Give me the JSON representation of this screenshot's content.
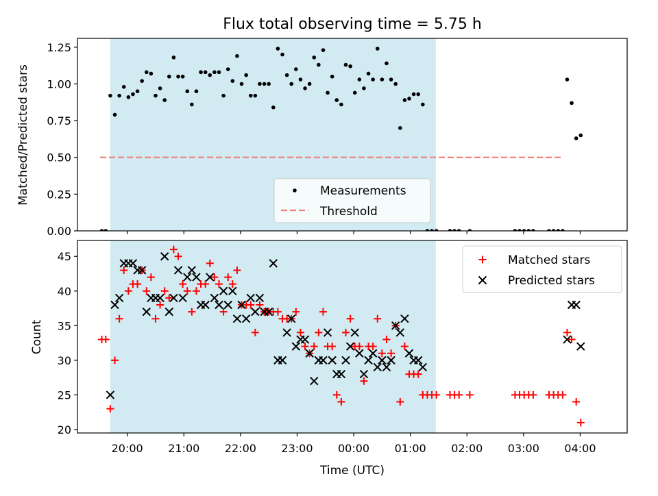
{
  "chart_data": [
    {
      "type": "scatter",
      "title": "Flux total observing time = 5.75 h",
      "ylabel": "Matched/Predicted stars",
      "xlabel": "",
      "ylim": [
        0,
        1.31
      ],
      "xlim": [
        -0.88,
        8.83
      ],
      "y_ticks": [
        0,
        0.25,
        0.5,
        0.75,
        1.0,
        1.25
      ],
      "y_tick_labels": [
        "0.00",
        "0.25",
        "0.50",
        "0.75",
        "1.00",
        "1.25"
      ],
      "shaded_region": {
        "x": [
          -0.3,
          5.45
        ],
        "color": "#add8e6"
      },
      "legend": {
        "position": "lower-center",
        "entries": [
          "Measurements",
          "Threshold"
        ]
      },
      "threshold": {
        "name": "Threshold",
        "y": 0.5,
        "x": [
          -0.48,
          7.68
        ],
        "color": "#f08080"
      },
      "series": [
        {
          "name": "Measurements",
          "color": "#000000",
          "points": [
            [
              -0.45,
              0.0
            ],
            [
              -0.38,
              0.0
            ],
            [
              -0.3,
              0.92
            ],
            [
              -0.22,
              0.79
            ],
            [
              -0.14,
              0.92
            ],
            [
              -0.06,
              0.98
            ],
            [
              0.02,
              0.91
            ],
            [
              0.1,
              0.93
            ],
            [
              0.18,
              0.95
            ],
            [
              0.26,
              1.02
            ],
            [
              0.34,
              1.08
            ],
            [
              0.42,
              1.07
            ],
            [
              0.5,
              0.92
            ],
            [
              0.58,
              0.97
            ],
            [
              0.66,
              0.89
            ],
            [
              0.74,
              1.05
            ],
            [
              0.82,
              1.18
            ],
            [
              0.9,
              1.05
            ],
            [
              0.98,
              1.05
            ],
            [
              1.06,
              0.95
            ],
            [
              1.14,
              0.86
            ],
            [
              1.22,
              0.95
            ],
            [
              1.3,
              1.08
            ],
            [
              1.38,
              1.08
            ],
            [
              1.46,
              1.06
            ],
            [
              1.54,
              1.08
            ],
            [
              1.62,
              1.08
            ],
            [
              1.7,
              0.92
            ],
            [
              1.78,
              1.1
            ],
            [
              1.86,
              1.02
            ],
            [
              1.94,
              1.19
            ],
            [
              2.02,
              1.0
            ],
            [
              2.1,
              1.06
            ],
            [
              2.18,
              0.92
            ],
            [
              2.26,
              0.92
            ],
            [
              2.34,
              1.0
            ],
            [
              2.42,
              1.0
            ],
            [
              2.5,
              1.0
            ],
            [
              2.58,
              0.84
            ],
            [
              2.66,
              1.24
            ],
            [
              2.74,
              1.2
            ],
            [
              2.82,
              1.06
            ],
            [
              2.9,
              1.0
            ],
            [
              2.98,
              1.1
            ],
            [
              3.06,
              1.03
            ],
            [
              3.14,
              0.97
            ],
            [
              3.22,
              1.0
            ],
            [
              3.3,
              1.18
            ],
            [
              3.38,
              1.13
            ],
            [
              3.46,
              1.23
            ],
            [
              3.54,
              0.94
            ],
            [
              3.62,
              1.05
            ],
            [
              3.7,
              0.89
            ],
            [
              3.78,
              0.86
            ],
            [
              3.86,
              1.13
            ],
            [
              3.94,
              1.12
            ],
            [
              4.02,
              0.94
            ],
            [
              4.1,
              1.03
            ],
            [
              4.18,
              0.97
            ],
            [
              4.26,
              1.07
            ],
            [
              4.34,
              1.03
            ],
            [
              4.42,
              1.24
            ],
            [
              4.5,
              1.03
            ],
            [
              4.58,
              1.14
            ],
            [
              4.66,
              1.03
            ],
            [
              4.74,
              1.0
            ],
            [
              4.82,
              0.7
            ],
            [
              4.9,
              0.89
            ],
            [
              4.98,
              0.9
            ],
            [
              5.06,
              0.93
            ],
            [
              5.14,
              0.93
            ],
            [
              5.22,
              0.86
            ],
            [
              5.3,
              0.0
            ],
            [
              5.38,
              0.0
            ],
            [
              5.46,
              0.0
            ],
            [
              5.7,
              0.0
            ],
            [
              5.78,
              0.0
            ],
            [
              5.86,
              0.0
            ],
            [
              6.05,
              0.0
            ],
            [
              6.85,
              0.0
            ],
            [
              6.93,
              0.0
            ],
            [
              7.01,
              0.0
            ],
            [
              7.09,
              0.0
            ],
            [
              7.17,
              0.0
            ],
            [
              7.45,
              0.0
            ],
            [
              7.53,
              0.0
            ],
            [
              7.61,
              0.0
            ],
            [
              7.69,
              0.0
            ],
            [
              7.77,
              1.03
            ],
            [
              7.85,
              0.87
            ],
            [
              7.93,
              0.63
            ],
            [
              8.01,
              0.65
            ]
          ]
        }
      ]
    },
    {
      "type": "scatter",
      "title": "",
      "ylabel": "Count",
      "xlabel": "Time (UTC)",
      "ylim": [
        19.5,
        47.3
      ],
      "xlim": [
        -0.88,
        8.83
      ],
      "y_ticks": [
        20,
        25,
        30,
        35,
        40,
        45
      ],
      "y_tick_labels": [
        "20",
        "25",
        "30",
        "35",
        "40",
        "45"
      ],
      "x_ticks": [
        0,
        1,
        2,
        3,
        4,
        5,
        6,
        7,
        8
      ],
      "x_tick_labels": [
        "20:00",
        "21:00",
        "22:00",
        "23:00",
        "00:00",
        "01:00",
        "02:00",
        "03:00",
        "04:00"
      ],
      "shaded_region": {
        "x": [
          -0.3,
          5.45
        ],
        "color": "#add8e6"
      },
      "legend": {
        "position": "top-right",
        "entries": [
          "Matched stars",
          "Predicted stars"
        ]
      },
      "series": [
        {
          "name": "Matched stars",
          "color": "#ff0000",
          "marker": "plus",
          "points": [
            [
              -0.45,
              33
            ],
            [
              -0.38,
              33
            ],
            [
              -0.3,
              23
            ],
            [
              -0.22,
              30
            ],
            [
              -0.14,
              36
            ],
            [
              -0.06,
              43
            ],
            [
              0.02,
              40
            ],
            [
              0.1,
              41
            ],
            [
              0.18,
              41
            ],
            [
              0.26,
              43
            ],
            [
              0.34,
              40
            ],
            [
              0.42,
              42
            ],
            [
              0.5,
              36
            ],
            [
              0.58,
              38
            ],
            [
              0.66,
              40
            ],
            [
              0.74,
              39
            ],
            [
              0.82,
              46
            ],
            [
              0.9,
              45
            ],
            [
              0.98,
              41
            ],
            [
              1.06,
              40
            ],
            [
              1.14,
              37
            ],
            [
              1.22,
              40
            ],
            [
              1.3,
              41
            ],
            [
              1.38,
              41
            ],
            [
              1.46,
              44
            ],
            [
              1.54,
              42
            ],
            [
              1.62,
              41
            ],
            [
              1.7,
              37
            ],
            [
              1.78,
              42
            ],
            [
              1.86,
              41
            ],
            [
              1.94,
              43
            ],
            [
              2.02,
              38
            ],
            [
              2.1,
              38
            ],
            [
              2.18,
              38
            ],
            [
              2.26,
              34
            ],
            [
              2.34,
              38
            ],
            [
              2.42,
              37
            ],
            [
              2.5,
              37
            ],
            [
              2.58,
              37
            ],
            [
              2.66,
              37
            ],
            [
              2.74,
              36
            ],
            [
              2.82,
              36
            ],
            [
              2.9,
              36
            ],
            [
              2.98,
              37
            ],
            [
              3.06,
              34
            ],
            [
              3.14,
              32
            ],
            [
              3.22,
              31
            ],
            [
              3.3,
              32
            ],
            [
              3.38,
              34
            ],
            [
              3.46,
              37
            ],
            [
              3.54,
              32
            ],
            [
              3.62,
              32
            ],
            [
              3.7,
              25
            ],
            [
              3.78,
              24
            ],
            [
              3.86,
              34
            ],
            [
              3.94,
              36
            ],
            [
              4.02,
              32
            ],
            [
              4.1,
              32
            ],
            [
              4.18,
              27
            ],
            [
              4.26,
              32
            ],
            [
              4.34,
              32
            ],
            [
              4.42,
              36
            ],
            [
              4.5,
              31
            ],
            [
              4.58,
              33
            ],
            [
              4.66,
              31
            ],
            [
              4.74,
              35
            ],
            [
              4.82,
              24
            ],
            [
              4.9,
              32
            ],
            [
              4.98,
              28
            ],
            [
              5.06,
              28
            ],
            [
              5.14,
              28
            ],
            [
              5.22,
              25
            ],
            [
              5.3,
              25
            ],
            [
              5.38,
              25
            ],
            [
              5.46,
              25
            ],
            [
              5.7,
              25
            ],
            [
              5.78,
              25
            ],
            [
              5.86,
              25
            ],
            [
              6.05,
              25
            ],
            [
              6.85,
              25
            ],
            [
              6.93,
              25
            ],
            [
              7.01,
              25
            ],
            [
              7.09,
              25
            ],
            [
              7.17,
              25
            ],
            [
              7.45,
              25
            ],
            [
              7.53,
              25
            ],
            [
              7.61,
              25
            ],
            [
              7.69,
              25
            ],
            [
              7.77,
              34
            ],
            [
              7.85,
              33
            ],
            [
              7.93,
              24
            ],
            [
              8.01,
              21
            ]
          ]
        },
        {
          "name": "Predicted stars",
          "color": "#000000",
          "marker": "x",
          "points": [
            [
              -0.3,
              25
            ],
            [
              -0.22,
              38
            ],
            [
              -0.14,
              39
            ],
            [
              -0.06,
              44
            ],
            [
              0.02,
              44
            ],
            [
              0.1,
              44
            ],
            [
              0.18,
              43
            ],
            [
              0.26,
              43
            ],
            [
              0.34,
              37
            ],
            [
              0.42,
              39
            ],
            [
              0.5,
              39
            ],
            [
              0.58,
              39
            ],
            [
              0.66,
              45
            ],
            [
              0.74,
              37
            ],
            [
              0.82,
              39
            ],
            [
              0.9,
              43
            ],
            [
              0.98,
              39
            ],
            [
              1.06,
              42
            ],
            [
              1.14,
              43
            ],
            [
              1.22,
              42
            ],
            [
              1.3,
              38
            ],
            [
              1.38,
              38
            ],
            [
              1.46,
              42
            ],
            [
              1.54,
              39
            ],
            [
              1.62,
              38
            ],
            [
              1.7,
              40
            ],
            [
              1.78,
              38
            ],
            [
              1.86,
              40
            ],
            [
              1.94,
              36
            ],
            [
              2.02,
              38
            ],
            [
              2.1,
              36
            ],
            [
              2.18,
              39
            ],
            [
              2.26,
              37
            ],
            [
              2.34,
              39
            ],
            [
              2.42,
              37
            ],
            [
              2.5,
              37
            ],
            [
              2.58,
              44
            ],
            [
              2.66,
              30
            ],
            [
              2.74,
              30
            ],
            [
              2.82,
              34
            ],
            [
              2.9,
              36
            ],
            [
              2.98,
              32
            ],
            [
              3.06,
              33
            ],
            [
              3.14,
              33
            ],
            [
              3.22,
              31
            ],
            [
              3.3,
              27
            ],
            [
              3.38,
              30
            ],
            [
              3.46,
              30
            ],
            [
              3.54,
              34
            ],
            [
              3.62,
              30
            ],
            [
              3.7,
              28
            ],
            [
              3.78,
              28
            ],
            [
              3.86,
              30
            ],
            [
              3.94,
              32
            ],
            [
              4.02,
              34
            ],
            [
              4.1,
              31
            ],
            [
              4.18,
              28
            ],
            [
              4.26,
              30
            ],
            [
              4.34,
              31
            ],
            [
              4.42,
              29
            ],
            [
              4.5,
              30
            ],
            [
              4.58,
              29
            ],
            [
              4.66,
              30
            ],
            [
              4.74,
              35
            ],
            [
              4.82,
              34
            ],
            [
              4.9,
              36
            ],
            [
              4.98,
              31
            ],
            [
              5.06,
              30
            ],
            [
              5.14,
              30
            ],
            [
              5.22,
              29
            ],
            [
              7.77,
              33
            ],
            [
              7.85,
              38
            ],
            [
              7.93,
              38
            ],
            [
              8.01,
              32
            ]
          ]
        }
      ]
    }
  ]
}
